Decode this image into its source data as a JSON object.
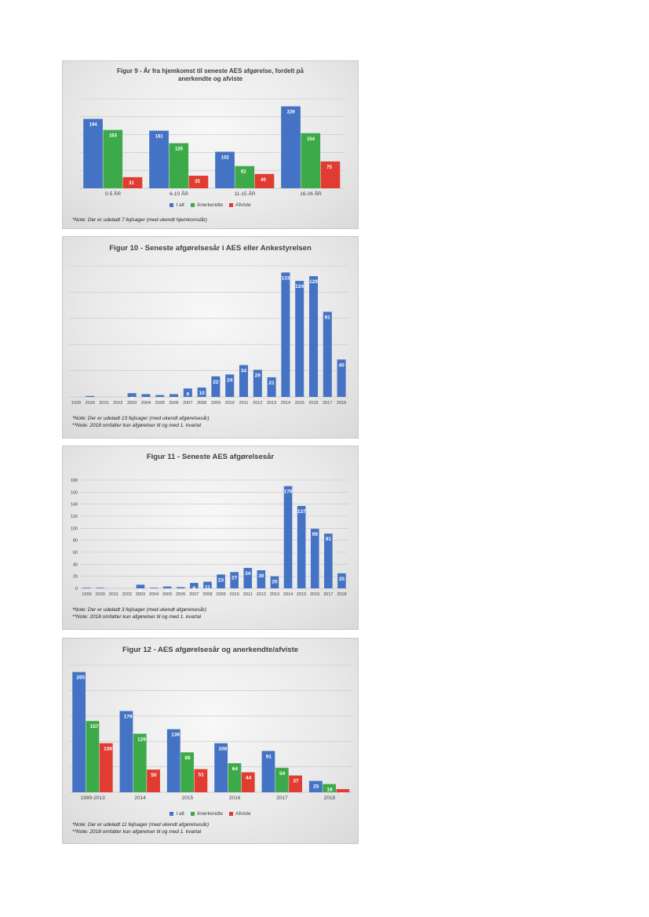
{
  "colors": {
    "i_alt": "#4472c4",
    "anerkendte": "#3daa4a",
    "afviste": "#e03c31",
    "grid": "#c4c4c4",
    "axis_text": "#404040"
  },
  "chart_data": [
    {
      "type": "bar",
      "title": "Figur 9 - År fra hjemkomst til seneste AES afgørelse, fordelt på anerkendte og afviste",
      "categories": [
        "0-5 ÅR",
        "6-10 ÅR",
        "11-15 ÅR",
        "16-26 ÅR"
      ],
      "series": [
        {
          "name": "I alt",
          "values": [
            194,
            161,
            102,
            229
          ]
        },
        {
          "name": "Anerkendte",
          "values": [
            163,
            126,
            62,
            154
          ]
        },
        {
          "name": "Afviste",
          "values": [
            31,
            35,
            40,
            75
          ]
        }
      ],
      "ylim": [
        0,
        250
      ],
      "grid": true,
      "legend": "bottom",
      "notes": [
        "*Note: Der er udeladt 7 fejlsager (med ukendt hjemkomstår)"
      ]
    },
    {
      "type": "bar",
      "title": "Figur 10 - Seneste afgørelsesår i AES eller Ankestyrelsen",
      "categories": [
        "1999",
        "2000",
        "2001",
        "2002",
        "2003",
        "2004",
        "2005",
        "2006",
        "2007",
        "2008",
        "2009",
        "2010",
        "2011",
        "2012",
        "2013",
        "2014",
        "2015",
        "2016",
        "2017",
        "2018"
      ],
      "series": [
        {
          "name": "",
          "values": [
            0,
            1,
            0,
            0,
            4,
            3,
            2,
            3,
            9,
            10,
            22,
            24,
            34,
            29,
            21,
            133,
            124,
            129,
            91,
            40
          ]
        }
      ],
      "ylim": [
        0,
        140
      ],
      "grid": true,
      "notes": [
        "*Note: Der er udeladt 13 fejlsager (med ukendt afgørelsesår)",
        "**Note: 2018 omfatter kun afgørelser til og med 1. kvartal"
      ]
    },
    {
      "type": "bar",
      "title": "Figur 11 - Seneste AES afgørelsesår",
      "categories": [
        "1999",
        "2000",
        "2001",
        "2002",
        "2003",
        "2004",
        "2005",
        "2006",
        "2007",
        "2008",
        "2009",
        "2010",
        "2011",
        "2012",
        "2013",
        "2014",
        "2015",
        "2016",
        "2017",
        "2018"
      ],
      "series": [
        {
          "name": "",
          "values": [
            1,
            1,
            0,
            0,
            6,
            1,
            3,
            2,
            9,
            11,
            23,
            27,
            34,
            30,
            20,
            170,
            137,
            99,
            91,
            25
          ]
        }
      ],
      "ylim": [
        0,
        180
      ],
      "yticks": [
        "0",
        "20",
        "40",
        "60",
        "80",
        "100",
        "120",
        "140",
        "160",
        "180"
      ],
      "grid": true,
      "notes": [
        "*Note: Der er udeladt 3 fejlsager (med ukendt afgørelsesår)",
        "**Note: 2018 omfatter kun afgørelser til og med 1. kvartal"
      ]
    },
    {
      "type": "bar",
      "title": "Figur 12 - AES afgørelsesår og anerkendte/afviste",
      "categories": [
        "1999-2013",
        "2014",
        "2015",
        "2016",
        "2017",
        "2018"
      ],
      "series": [
        {
          "name": "I alt",
          "values": [
            265,
            179,
            139,
            108,
            91,
            25
          ]
        },
        {
          "name": "Anerkendte",
          "values": [
            157,
            129,
            88,
            64,
            54,
            18
          ]
        },
        {
          "name": "Afviste",
          "values": [
            108,
            50,
            51,
            44,
            37,
            7
          ]
        }
      ],
      "ylim": [
        0,
        280
      ],
      "grid": true,
      "legend": "bottom",
      "notes": [
        "*Note: Der er udeladt 11 fejlsager (med ukendt afgørelsesår)",
        "**Note: 2018 omfatter kun afgørelser til og med 1. kvartal"
      ]
    }
  ]
}
